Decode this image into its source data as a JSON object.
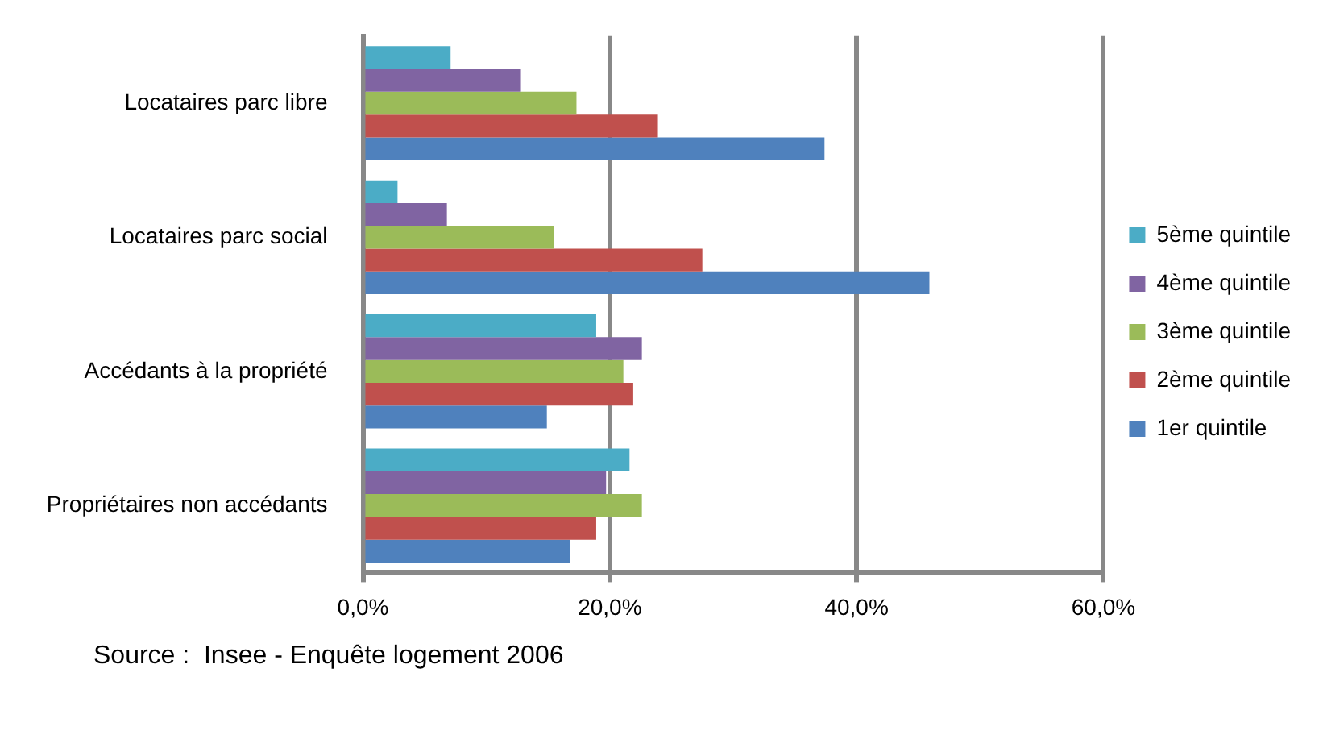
{
  "chart_data": {
    "type": "bar",
    "orientation": "horizontal",
    "categories": [
      "Locataires parc libre",
      "Locataires parc social",
      "Accédants à la propriété",
      "Propriétaires non accédants"
    ],
    "series": [
      {
        "name": "5ème quintile",
        "color": "#4bacc6",
        "values": [
          7.1,
          2.8,
          18.9,
          21.6
        ]
      },
      {
        "name": "4ème quintile",
        "color": "#8064a2",
        "values": [
          12.8,
          6.8,
          22.6,
          19.7
        ]
      },
      {
        "name": "3ème quintile",
        "color": "#9bbb59",
        "values": [
          17.3,
          15.5,
          21.1,
          22.6
        ]
      },
      {
        "name": "2ème quintile",
        "color": "#c0504d",
        "values": [
          23.9,
          27.5,
          21.9,
          18.9
        ]
      },
      {
        "name": "1er quintile",
        "color": "#4f81bd",
        "values": [
          37.4,
          45.9,
          14.9,
          16.8
        ]
      }
    ],
    "xlim": [
      0,
      60
    ],
    "xticks": [
      {
        "value": 0,
        "label": "0,0%"
      },
      {
        "value": 20,
        "label": "20,0%"
      },
      {
        "value": 40,
        "label": "40,0%"
      },
      {
        "value": 60,
        "label": "60,0%"
      }
    ],
    "grid": "x",
    "legend": "right",
    "annotations": [
      "Source :  Insee - Enquête logement 2006"
    ]
  }
}
